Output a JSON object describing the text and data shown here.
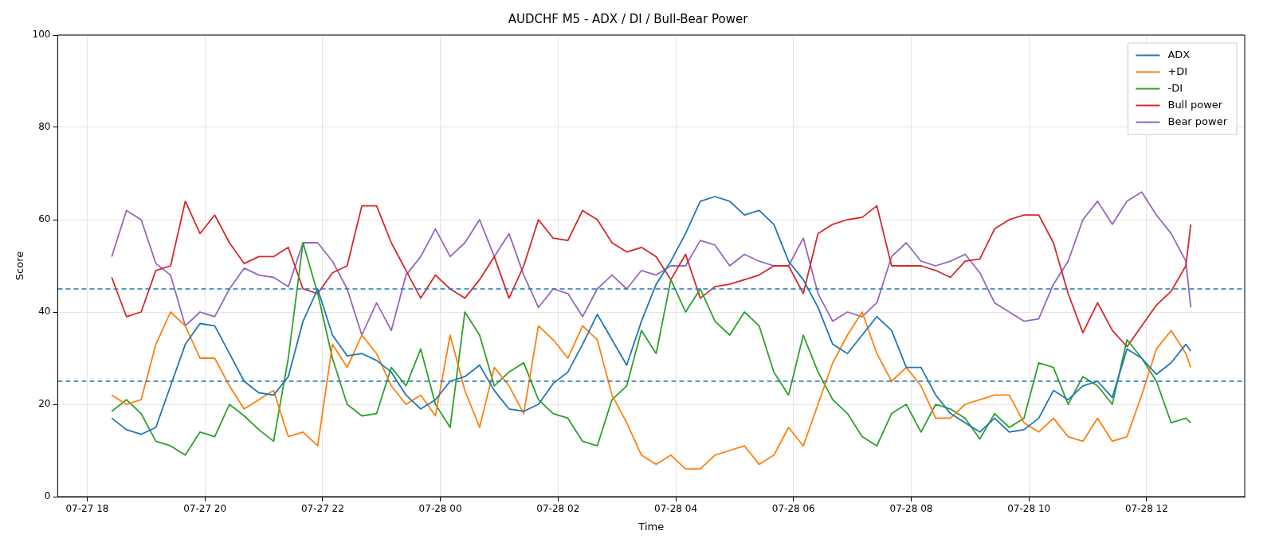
{
  "chart_data": {
    "type": "line",
    "title": "AUDCHF M5 - ADX / DI / Bull-Bear Power",
    "xlabel": "Time",
    "ylabel": "Score",
    "x": [
      "--07-27T18:25",
      "--07-27T18:40",
      "--07-27T18:55",
      "--07-27T19:10",
      "--07-27T19:25",
      "--07-27T19:40",
      "--07-27T19:55",
      "--07-27T20:10",
      "--07-27T20:25",
      "--07-27T20:40",
      "--07-27T20:55",
      "--07-27T21:10",
      "--07-27T21:25",
      "--07-27T21:40",
      "--07-27T21:55",
      "--07-27T22:10",
      "--07-27T22:25",
      "--07-27T22:40",
      "--07-27T22:55",
      "--07-27T23:10",
      "--07-27T23:25",
      "--07-27T23:40",
      "--07-27T23:55",
      "--07-28T00:10",
      "--07-28T00:25",
      "--07-28T00:40",
      "--07-28T00:55",
      "--07-28T01:10",
      "--07-28T01:25",
      "--07-28T01:40",
      "--07-28T01:55",
      "--07-28T02:10",
      "--07-28T02:25",
      "--07-28T02:40",
      "--07-28T02:55",
      "--07-28T03:10",
      "--07-28T03:25",
      "--07-28T03:40",
      "--07-28T03:55",
      "--07-28T04:10",
      "--07-28T04:25",
      "--07-28T04:40",
      "--07-28T04:55",
      "--07-28T05:10",
      "--07-28T05:25",
      "--07-28T05:40",
      "--07-28T05:55",
      "--07-28T06:10",
      "--07-28T06:25",
      "--07-28T06:40",
      "--07-28T06:55",
      "--07-28T07:10",
      "--07-28T07:25",
      "--07-28T07:40",
      "--07-28T07:55",
      "--07-28T08:10",
      "--07-28T08:25",
      "--07-28T08:40",
      "--07-28T08:55",
      "--07-28T09:10",
      "--07-28T09:25",
      "--07-28T09:40",
      "--07-28T09:55",
      "--07-28T10:10",
      "--07-28T10:25",
      "--07-28T10:40",
      "--07-28T10:55",
      "--07-28T11:10",
      "--07-28T11:25",
      "--07-28T11:40",
      "--07-28T11:55",
      "--07-28T12:10",
      "--07-28T12:25",
      "--07-28T12:40",
      "--07-28T12:45"
    ],
    "series": [
      {
        "name": "ADX",
        "color": "#1f77b4",
        "values": [
          17,
          14.5,
          13.5,
          15,
          24,
          33,
          37.5,
          37,
          31,
          25,
          22.5,
          22,
          26,
          38,
          45,
          35,
          30.5,
          31,
          29.5,
          27,
          22,
          19,
          21,
          25,
          26,
          28.5,
          23,
          19,
          18.5,
          20,
          24.5,
          27,
          33,
          39.5,
          34,
          28.5,
          38,
          46,
          51,
          57,
          64,
          65,
          64,
          61,
          62,
          59,
          51,
          47,
          41,
          33,
          31,
          35,
          39,
          36,
          28,
          28,
          22,
          18,
          16,
          14,
          17,
          14,
          14.5,
          17,
          23,
          21,
          24,
          25,
          21.5,
          32,
          30,
          26.5,
          29,
          33,
          31.5
        ]
      },
      {
        "name": "+DI",
        "color": "#ff7f0e",
        "values": [
          22,
          20,
          21,
          33,
          40,
          37,
          30,
          30,
          24,
          19,
          21,
          23,
          13,
          14,
          11,
          33,
          28,
          35,
          31,
          24,
          20,
          22,
          17.5,
          35,
          23,
          15,
          28,
          24,
          18,
          37,
          34,
          30,
          37,
          34,
          22,
          16,
          9,
          7,
          9,
          6,
          6,
          9,
          10,
          11,
          7,
          9,
          15,
          11,
          20,
          29,
          35,
          40,
          31,
          25,
          28,
          24,
          17,
          17,
          20,
          21,
          22,
          22,
          16,
          14,
          17,
          13,
          12,
          17,
          12,
          13,
          22,
          32,
          36,
          31,
          28
        ]
      },
      {
        "name": "-DI",
        "color": "#2ca02c",
        "values": [
          18.5,
          21,
          18,
          12,
          11,
          9,
          14,
          13,
          20,
          17.5,
          14.5,
          12,
          30,
          55,
          44,
          30,
          20,
          17.5,
          18,
          28,
          24,
          32,
          20,
          15,
          40,
          35,
          24,
          27,
          29,
          21,
          18,
          17,
          12,
          11,
          21,
          24,
          36,
          31,
          47,
          40,
          45,
          38,
          35,
          40,
          37,
          27,
          22,
          35,
          27,
          21,
          18,
          13,
          11,
          18,
          20,
          14,
          20,
          19,
          17,
          12.5,
          18,
          15,
          17,
          29,
          28,
          20,
          26,
          24,
          20,
          34,
          30,
          25,
          16,
          17,
          16
        ]
      },
      {
        "name": "Bull power",
        "color": "#d62728",
        "values": [
          47.5,
          39,
          40,
          49,
          50,
          64,
          57,
          61,
          55,
          50.5,
          52,
          52,
          54,
          45,
          44,
          48.5,
          50,
          63,
          63,
          55,
          49,
          43,
          48,
          45,
          43,
          47,
          52,
          43,
          50,
          60,
          56,
          55.5,
          62,
          60,
          55,
          53,
          54,
          52,
          47,
          52.5,
          43,
          45.5,
          46,
          47,
          48,
          50,
          50,
          44,
          57,
          59,
          60,
          60.5,
          63,
          50,
          50,
          50,
          49,
          47.5,
          51,
          51.5,
          58,
          60,
          61,
          61,
          55,
          44,
          35.5,
          42,
          36,
          32.5,
          37,
          41.5,
          44.5,
          50,
          59
        ]
      },
      {
        "name": "Bear power",
        "color": "#9467bd",
        "values": [
          52,
          62,
          60,
          50.5,
          48,
          37,
          40,
          39,
          45,
          49.5,
          48,
          47.5,
          45.5,
          55,
          55,
          51,
          45,
          35,
          42,
          36,
          48,
          52,
          58,
          52,
          55,
          60,
          52,
          57,
          48,
          41,
          45,
          44,
          39,
          45,
          48,
          45,
          49,
          48,
          50,
          50,
          55.5,
          54.5,
          50,
          52.5,
          51,
          50,
          50,
          56,
          44,
          38,
          40,
          39,
          42,
          52,
          55,
          51,
          50,
          51,
          52.5,
          48.5,
          42,
          40,
          38,
          38.5,
          46,
          51,
          60,
          64,
          59,
          64,
          66,
          61,
          57,
          51,
          41
        ]
      }
    ],
    "xlim": [
      "--07-27T17:30",
      "--07-28T13:40"
    ],
    "xticks": [
      {
        "value": "--07-27T18:00",
        "label": "07-27 18"
      },
      {
        "value": "--07-27T20:00",
        "label": "07-27 20"
      },
      {
        "value": "--07-27T22:00",
        "label": "07-27 22"
      },
      {
        "value": "--07-28T00:00",
        "label": "07-28 00"
      },
      {
        "value": "--07-28T02:00",
        "label": "07-28 02"
      },
      {
        "value": "--07-28T04:00",
        "label": "07-28 04"
      },
      {
        "value": "--07-28T06:00",
        "label": "07-28 06"
      },
      {
        "value": "--07-28T08:00",
        "label": "07-28 08"
      },
      {
        "value": "--07-28T10:00",
        "label": "07-28 10"
      },
      {
        "value": "--07-28T12:00",
        "label": "07-28 12"
      }
    ],
    "ylim": [
      0,
      100
    ],
    "yticks": [
      0,
      20,
      40,
      60,
      80,
      100
    ],
    "ref_lines": [
      {
        "axis": "y",
        "value": 25,
        "color": "#1f77b4",
        "line_style": "dashed"
      },
      {
        "axis": "y",
        "value": 45,
        "color": "#1f77b4",
        "line_style": "dashed"
      }
    ],
    "grid": true,
    "legend": "top right",
    "marker": "none",
    "line_style": "solid"
  }
}
